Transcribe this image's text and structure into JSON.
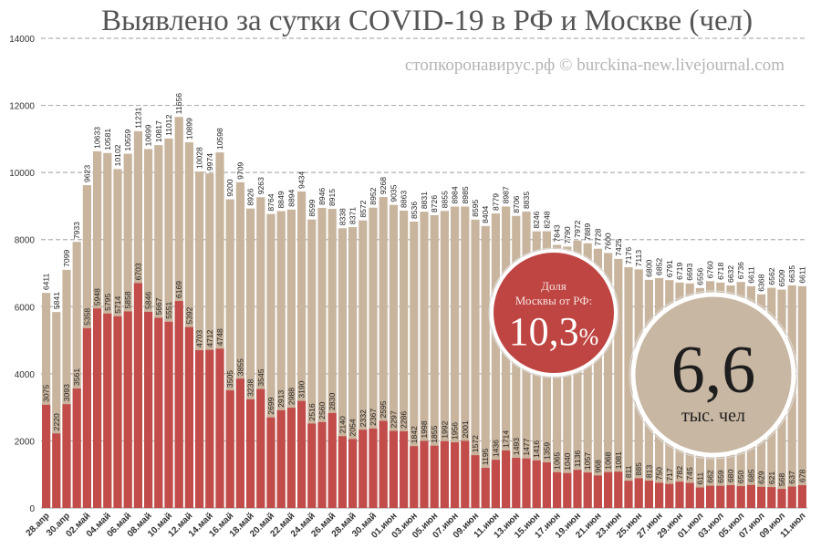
{
  "source": "стопкоронавирус.рф © burckina-new.livejournal.com",
  "chart_data": {
    "type": "bar",
    "overlay": true,
    "title": "Выявлено за сутки COVID-19 в РФ и Москве (чел)",
    "categories": [
      "28.апр",
      "",
      "30.апр",
      "",
      "02.май",
      "",
      "04.май",
      "",
      "06.май",
      "",
      "08.май",
      "",
      "10.май",
      "",
      "12.май",
      "",
      "14.май",
      "",
      "16.май",
      "",
      "18.май",
      "",
      "20.май",
      "",
      "22.май",
      "",
      "24.май",
      "",
      "26.май",
      "",
      "28.май",
      "",
      "30.май",
      "",
      "01.июн",
      "",
      "03.июн",
      "",
      "05.июн",
      "",
      "07.июн",
      "",
      "09.июн",
      "",
      "11.июн",
      "",
      "13.июн",
      "",
      "15.июн",
      "",
      "17.июн",
      "",
      "19.июн",
      "",
      "21.июн",
      "",
      "23.июн",
      "",
      "25.июн",
      "",
      "27.июн",
      "",
      "29.июн",
      "",
      "01.июл",
      "",
      "03.июл",
      "",
      "05.июл",
      "",
      "07.июл",
      "",
      "09.июл",
      "",
      "11.июл"
    ],
    "series": [
      {
        "color": "#c9b59e",
        "values": [
          6411,
          5841,
          7099,
          7933,
          9623,
          10633,
          10581,
          10102,
          10559,
          11231,
          10699,
          10817,
          11012,
          11656,
          10899,
          10028,
          9974,
          10598,
          9200,
          9709,
          8926,
          9263,
          8764,
          8849,
          8894,
          9434,
          8599,
          8946,
          8915,
          8338,
          8371,
          8572,
          8952,
          9268,
          9035,
          8863,
          8536,
          8831,
          8726,
          8855,
          8984,
          8985,
          8595,
          8404,
          8779,
          8987,
          8706,
          8835,
          8246,
          8248,
          7843,
          7790,
          7972,
          7889,
          7728,
          7600,
          7425,
          7176,
          7113,
          6800,
          6852,
          6791,
          6719,
          6693,
          6556,
          6760,
          6718,
          6632,
          6736,
          6611,
          6368,
          6562,
          6509,
          6635,
          6611
        ]
      },
      {
        "color": "#c24c4a",
        "values": [
          3075,
          2220,
          3093,
          3561,
          5358,
          5948,
          5795,
          5714,
          5858,
          6703,
          5846,
          5667,
          5551,
          6169,
          5392,
          4703,
          4712,
          4748,
          3505,
          3855,
          3238,
          3545,
          2699,
          2913,
          2988,
          3190,
          2516,
          2560,
          2830,
          2140,
          2054,
          2332,
          2367,
          2595,
          2297,
          2286,
          1842,
          1998,
          1855,
          1992,
          1956,
          2001,
          1572,
          1195,
          1436,
          1714,
          1493,
          1477,
          1416,
          1359,
          1065,
          1040,
          1136,
          1057,
          968,
          1068,
          1081,
          811,
          885,
          813,
          750,
          717,
          782,
          745,
          611,
          662,
          659,
          680,
          650,
          685,
          629,
          621,
          568,
          637,
          678
        ]
      }
    ],
    "ylim": [
      0,
      14000
    ],
    "yticks": [
      0,
      2000,
      4000,
      6000,
      8000,
      10000,
      12000,
      14000
    ],
    "grid": true
  },
  "annotations": {
    "moscow_share": {
      "line1": "Доля",
      "line2": "Москвы от РФ:",
      "value": "10,3",
      "unit": "%",
      "color": "#bf4542"
    },
    "average": {
      "value": "6,6",
      "unit": "тыс. чел",
      "color": "#c8b7a3"
    }
  }
}
